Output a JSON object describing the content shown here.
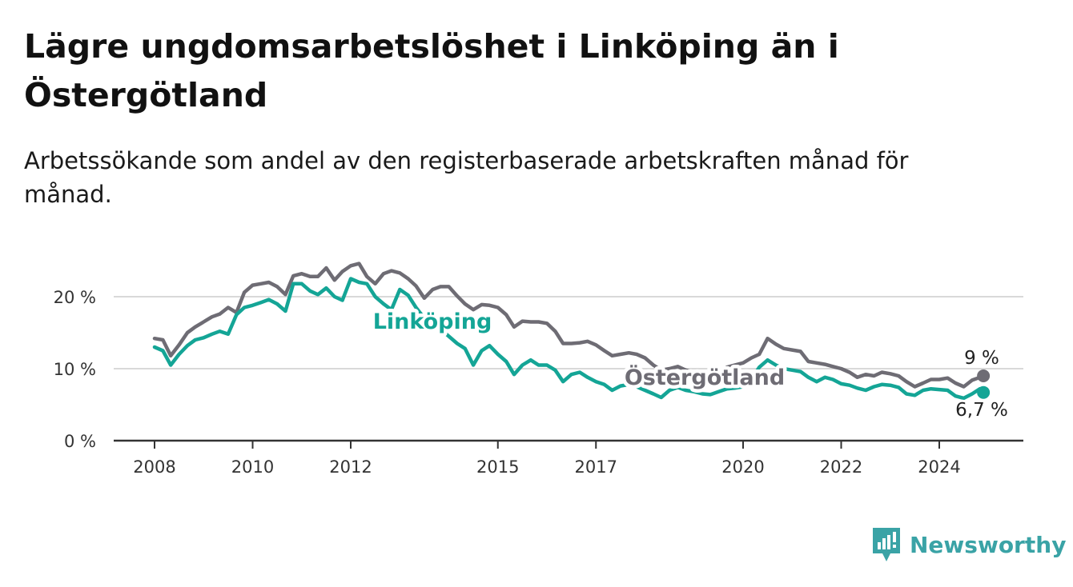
{
  "title": "Lägre ungdomsarbetslöshet i Linköping än i Östergötland",
  "subtitle": "Arbetssökande som andel av den registerbaserade arbetskraften månad för månad.",
  "brand": "Newsworthy",
  "colors": {
    "linkoping": "#14a596",
    "ostergotland": "#6e6c74",
    "grid": "#d9d9d9",
    "axis": "#333333"
  },
  "chart_data": {
    "type": "line",
    "x_unit": "year",
    "y_unit": "percent",
    "ylim": [
      0,
      25
    ],
    "xlim": [
      2007.6,
      2025.4
    ],
    "y_ticks": [
      0,
      10,
      20
    ],
    "y_tick_labels": [
      "0 %",
      "10 %",
      "20 %"
    ],
    "x_ticks": [
      2008,
      2010,
      2012,
      2015,
      2017,
      2020,
      2022,
      2024
    ],
    "x_tick_labels": [
      "2008",
      "2010",
      "2012",
      "2015",
      "2017",
      "2020",
      "2022",
      "2024"
    ],
    "grid": "horizontal",
    "series": [
      {
        "name": "Östergötland",
        "color": "#6e6c74",
        "end_label": "9 %",
        "points": [
          [
            2008.0,
            14.2
          ],
          [
            2008.17,
            14.0
          ],
          [
            2008.33,
            11.8
          ],
          [
            2008.5,
            13.3
          ],
          [
            2008.67,
            15.0
          ],
          [
            2008.83,
            15.8
          ],
          [
            2009.0,
            16.5
          ],
          [
            2009.17,
            17.2
          ],
          [
            2009.33,
            17.6
          ],
          [
            2009.5,
            18.5
          ],
          [
            2009.67,
            17.8
          ],
          [
            2009.83,
            20.6
          ],
          [
            2010.0,
            21.6
          ],
          [
            2010.17,
            21.8
          ],
          [
            2010.33,
            22.0
          ],
          [
            2010.5,
            21.4
          ],
          [
            2010.67,
            20.3
          ],
          [
            2010.83,
            22.9
          ],
          [
            2011.0,
            23.2
          ],
          [
            2011.17,
            22.8
          ],
          [
            2011.33,
            22.8
          ],
          [
            2011.5,
            24.0
          ],
          [
            2011.67,
            22.3
          ],
          [
            2011.83,
            23.5
          ],
          [
            2012.0,
            24.3
          ],
          [
            2012.17,
            24.6
          ],
          [
            2012.33,
            22.8
          ],
          [
            2012.5,
            21.8
          ],
          [
            2012.67,
            23.2
          ],
          [
            2012.83,
            23.6
          ],
          [
            2013.0,
            23.3
          ],
          [
            2013.17,
            22.5
          ],
          [
            2013.33,
            21.5
          ],
          [
            2013.5,
            19.8
          ],
          [
            2013.67,
            21.0
          ],
          [
            2013.83,
            21.4
          ],
          [
            2014.0,
            21.4
          ],
          [
            2014.17,
            20.1
          ],
          [
            2014.33,
            19.0
          ],
          [
            2014.5,
            18.2
          ],
          [
            2014.67,
            18.9
          ],
          [
            2014.83,
            18.8
          ],
          [
            2015.0,
            18.5
          ],
          [
            2015.17,
            17.5
          ],
          [
            2015.33,
            15.8
          ],
          [
            2015.5,
            16.6
          ],
          [
            2015.67,
            16.5
          ],
          [
            2015.83,
            16.5
          ],
          [
            2016.0,
            16.3
          ],
          [
            2016.17,
            15.2
          ],
          [
            2016.33,
            13.5
          ],
          [
            2016.5,
            13.5
          ],
          [
            2016.67,
            13.6
          ],
          [
            2016.83,
            13.8
          ],
          [
            2017.0,
            13.3
          ],
          [
            2017.17,
            12.5
          ],
          [
            2017.33,
            11.8
          ],
          [
            2017.5,
            12.0
          ],
          [
            2017.67,
            12.2
          ],
          [
            2017.83,
            12.0
          ],
          [
            2018.0,
            11.5
          ],
          [
            2018.17,
            10.5
          ],
          [
            2018.33,
            9.8
          ],
          [
            2018.5,
            10.0
          ],
          [
            2018.67,
            10.3
          ],
          [
            2018.83,
            9.8
          ],
          [
            2019.0,
            9.5
          ],
          [
            2019.17,
            9.3
          ],
          [
            2019.33,
            9.6
          ],
          [
            2019.5,
            9.2
          ],
          [
            2019.67,
            10.2
          ],
          [
            2019.83,
            10.5
          ],
          [
            2020.0,
            10.8
          ],
          [
            2020.17,
            11.5
          ],
          [
            2020.33,
            12.0
          ],
          [
            2020.5,
            14.2
          ],
          [
            2020.67,
            13.4
          ],
          [
            2020.83,
            12.8
          ],
          [
            2021.0,
            12.6
          ],
          [
            2021.17,
            12.4
          ],
          [
            2021.33,
            11.0
          ],
          [
            2021.5,
            10.8
          ],
          [
            2021.67,
            10.6
          ],
          [
            2021.83,
            10.3
          ],
          [
            2022.0,
            10.0
          ],
          [
            2022.17,
            9.5
          ],
          [
            2022.33,
            8.8
          ],
          [
            2022.5,
            9.2
          ],
          [
            2022.67,
            9.0
          ],
          [
            2022.83,
            9.5
          ],
          [
            2023.0,
            9.3
          ],
          [
            2023.17,
            9.0
          ],
          [
            2023.33,
            8.2
          ],
          [
            2023.5,
            7.5
          ],
          [
            2023.67,
            8.0
          ],
          [
            2023.83,
            8.5
          ],
          [
            2024.0,
            8.5
          ],
          [
            2024.17,
            8.7
          ],
          [
            2024.33,
            8.0
          ],
          [
            2024.5,
            7.5
          ],
          [
            2024.67,
            8.4
          ],
          [
            2024.83,
            8.8
          ],
          [
            2024.9,
            9.0
          ]
        ]
      },
      {
        "name": "Linköping",
        "color": "#14a596",
        "end_label": "6,7 %",
        "points": [
          [
            2008.0,
            13.0
          ],
          [
            2008.17,
            12.5
          ],
          [
            2008.33,
            10.5
          ],
          [
            2008.5,
            12.0
          ],
          [
            2008.67,
            13.2
          ],
          [
            2008.83,
            14.0
          ],
          [
            2009.0,
            14.3
          ],
          [
            2009.17,
            14.8
          ],
          [
            2009.33,
            15.2
          ],
          [
            2009.5,
            14.8
          ],
          [
            2009.67,
            17.5
          ],
          [
            2009.83,
            18.5
          ],
          [
            2010.0,
            18.8
          ],
          [
            2010.17,
            19.2
          ],
          [
            2010.33,
            19.6
          ],
          [
            2010.5,
            19.0
          ],
          [
            2010.67,
            18.0
          ],
          [
            2010.83,
            21.8
          ],
          [
            2011.0,
            21.8
          ],
          [
            2011.17,
            20.8
          ],
          [
            2011.33,
            20.3
          ],
          [
            2011.5,
            21.2
          ],
          [
            2011.67,
            20.0
          ],
          [
            2011.83,
            19.5
          ],
          [
            2012.0,
            22.5
          ],
          [
            2012.17,
            22.0
          ],
          [
            2012.33,
            21.8
          ],
          [
            2012.5,
            20.0
          ],
          [
            2012.67,
            19.0
          ],
          [
            2012.83,
            18.2
          ],
          [
            2013.0,
            21.0
          ],
          [
            2013.17,
            20.2
          ],
          [
            2013.33,
            18.5
          ],
          [
            2013.5,
            17.0
          ],
          [
            2013.67,
            15.5
          ],
          [
            2013.83,
            15.5
          ],
          [
            2014.0,
            14.5
          ],
          [
            2014.17,
            13.5
          ],
          [
            2014.33,
            12.8
          ],
          [
            2014.5,
            10.5
          ],
          [
            2014.67,
            12.5
          ],
          [
            2014.83,
            13.2
          ],
          [
            2015.0,
            12.0
          ],
          [
            2015.17,
            11.0
          ],
          [
            2015.33,
            9.2
          ],
          [
            2015.5,
            10.5
          ],
          [
            2015.67,
            11.2
          ],
          [
            2015.83,
            10.5
          ],
          [
            2016.0,
            10.5
          ],
          [
            2016.17,
            9.8
          ],
          [
            2016.33,
            8.2
          ],
          [
            2016.5,
            9.2
          ],
          [
            2016.67,
            9.5
          ],
          [
            2016.83,
            8.8
          ],
          [
            2017.0,
            8.2
          ],
          [
            2017.17,
            7.8
          ],
          [
            2017.33,
            7.0
          ],
          [
            2017.5,
            7.6
          ],
          [
            2017.67,
            7.8
          ],
          [
            2017.83,
            7.5
          ],
          [
            2018.0,
            7.0
          ],
          [
            2018.17,
            6.5
          ],
          [
            2018.33,
            6.0
          ],
          [
            2018.5,
            7.0
          ],
          [
            2018.67,
            7.4
          ],
          [
            2018.83,
            7.0
          ],
          [
            2019.0,
            6.8
          ],
          [
            2019.17,
            6.5
          ],
          [
            2019.33,
            6.4
          ],
          [
            2019.5,
            6.8
          ],
          [
            2019.67,
            7.2
          ],
          [
            2019.83,
            7.3
          ],
          [
            2020.0,
            7.5
          ],
          [
            2020.17,
            8.5
          ],
          [
            2020.33,
            10.2
          ],
          [
            2020.5,
            11.2
          ],
          [
            2020.67,
            10.5
          ],
          [
            2020.83,
            10.0
          ],
          [
            2021.0,
            9.8
          ],
          [
            2021.17,
            9.6
          ],
          [
            2021.33,
            8.8
          ],
          [
            2021.5,
            8.2
          ],
          [
            2021.67,
            8.8
          ],
          [
            2021.83,
            8.5
          ],
          [
            2022.0,
            7.9
          ],
          [
            2022.17,
            7.7
          ],
          [
            2022.33,
            7.3
          ],
          [
            2022.5,
            7.0
          ],
          [
            2022.67,
            7.5
          ],
          [
            2022.83,
            7.8
          ],
          [
            2023.0,
            7.7
          ],
          [
            2023.17,
            7.4
          ],
          [
            2023.33,
            6.5
          ],
          [
            2023.5,
            6.3
          ],
          [
            2023.67,
            7.0
          ],
          [
            2023.83,
            7.2
          ],
          [
            2024.0,
            7.1
          ],
          [
            2024.17,
            7.0
          ],
          [
            2024.33,
            6.2
          ],
          [
            2024.5,
            5.9
          ],
          [
            2024.67,
            6.5
          ],
          [
            2024.83,
            7.2
          ],
          [
            2024.9,
            6.7
          ]
        ]
      }
    ]
  }
}
